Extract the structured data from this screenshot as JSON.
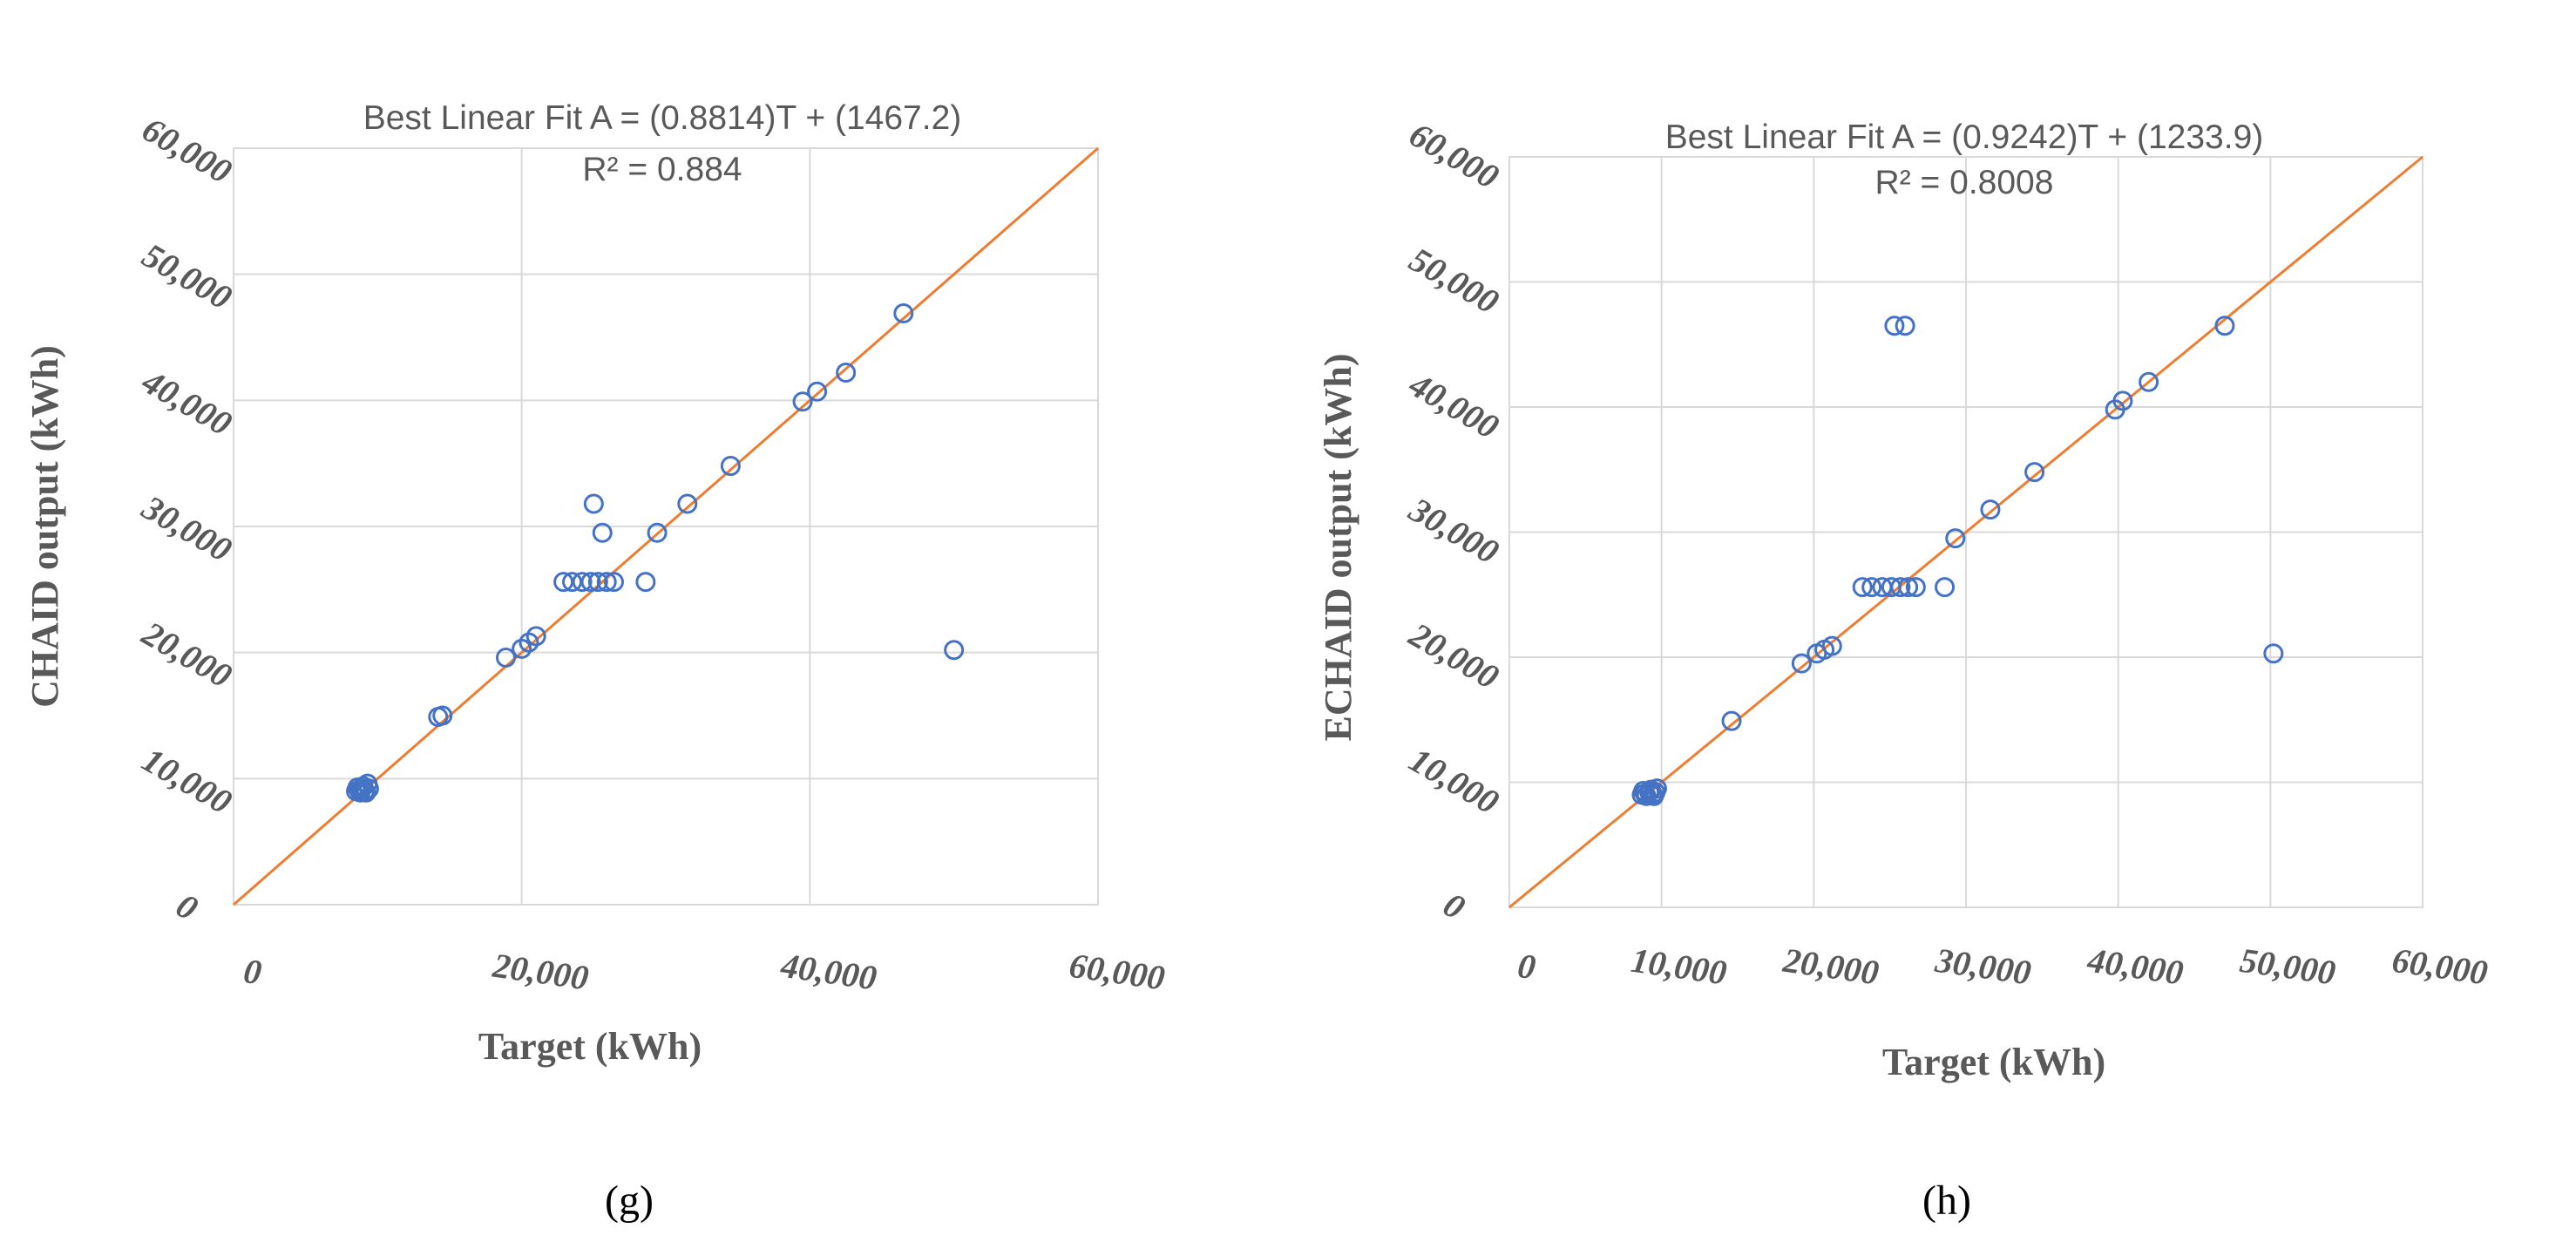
{
  "colors": {
    "markers": "#4472c4",
    "fit_line": "#ed7d31",
    "grid": "#d9d9d9",
    "text": "#595959"
  },
  "chart_data": [
    {
      "type": "scatter",
      "panel_label": "(g)",
      "title": "Best Linear Fit A = (0.8814)T + (1467.2)",
      "subtitle": "R² = 0.884",
      "xlabel": "Target (kWh)",
      "ylabel": "CHAID output (kWh)",
      "xlim": [
        0,
        60000
      ],
      "ylim": [
        0,
        60000
      ],
      "x_ticks": [
        "0",
        "20,000",
        "40,000",
        "60,000"
      ],
      "y_ticks": [
        "0",
        "10,000",
        "20,000",
        "30,000",
        "40,000",
        "50,000",
        "60,000"
      ],
      "grid": "vertical every 20,000, horizontal every 10,000",
      "series": [
        {
          "points": [
            [
              8500,
              9000
            ],
            [
              8700,
              9100
            ],
            [
              8800,
              8900
            ],
            [
              8900,
              9200
            ],
            [
              9000,
              9400
            ],
            [
              9100,
              9000
            ],
            [
              9200,
              8900
            ],
            [
              8600,
              9300
            ],
            [
              9300,
              9600
            ],
            [
              9400,
              9200
            ],
            [
              14200,
              14900
            ],
            [
              14500,
              15000
            ],
            [
              18900,
              19600
            ],
            [
              20000,
              20300
            ],
            [
              20500,
              20800
            ],
            [
              21000,
              21300
            ],
            [
              22900,
              25600
            ],
            [
              23500,
              25600
            ],
            [
              24200,
              25600
            ],
            [
              24800,
              25600
            ],
            [
              25300,
              25600
            ],
            [
              25900,
              25600
            ],
            [
              26400,
              25600
            ],
            [
              25000,
              31800
            ],
            [
              25600,
              29500
            ],
            [
              28600,
              25600
            ],
            [
              29400,
              29500
            ],
            [
              31500,
              31800
            ],
            [
              34500,
              34800
            ],
            [
              39500,
              39900
            ],
            [
              40500,
              40700
            ],
            [
              42500,
              42200
            ],
            [
              46500,
              46900
            ],
            [
              50000,
              20200
            ]
          ]
        }
      ],
      "fit_line": {
        "from": [
          0,
          0
        ],
        "to": [
          60000,
          60000
        ]
      }
    },
    {
      "type": "scatter",
      "panel_label": "(h)",
      "title": "Best Linear Fit A = (0.9242)T + (1233.9)",
      "subtitle": "R² = 0.8008",
      "xlabel": "Target (kWh)",
      "ylabel": "ECHAID output (kWh)",
      "xlim": [
        0,
        60000
      ],
      "ylim": [
        0,
        60000
      ],
      "x_ticks": [
        "0",
        "10,000",
        "20,000",
        "30,000",
        "40,000",
        "50,000",
        "60,000"
      ],
      "y_ticks": [
        "0",
        "10,000",
        "20,000",
        "30,000",
        "40,000",
        "50,000",
        "60,000"
      ],
      "grid": "vertical every 10,000, horizontal every 10,000",
      "series": [
        {
          "points": [
            [
              8700,
              9000
            ],
            [
              8900,
              9100
            ],
            [
              9000,
              8900
            ],
            [
              9200,
              9200
            ],
            [
              9300,
              9400
            ],
            [
              9400,
              9000
            ],
            [
              9500,
              8900
            ],
            [
              8800,
              9300
            ],
            [
              9700,
              9500
            ],
            [
              9600,
              9200
            ],
            [
              14600,
              14900
            ],
            [
              19200,
              19500
            ],
            [
              20200,
              20300
            ],
            [
              20700,
              20600
            ],
            [
              21200,
              20900
            ],
            [
              23200,
              25600
            ],
            [
              23800,
              25600
            ],
            [
              24500,
              25600
            ],
            [
              25100,
              25600
            ],
            [
              25700,
              25600
            ],
            [
              26200,
              25600
            ],
            [
              26700,
              25600
            ],
            [
              25300,
              46500
            ],
            [
              26000,
              46500
            ],
            [
              28600,
              25600
            ],
            [
              29300,
              29500
            ],
            [
              31600,
              31800
            ],
            [
              34500,
              34800
            ],
            [
              39800,
              39800
            ],
            [
              40300,
              40500
            ],
            [
              42000,
              42000
            ],
            [
              47000,
              46500
            ],
            [
              50200,
              20300
            ]
          ]
        }
      ],
      "fit_line": {
        "from": [
          0,
          0
        ],
        "to": [
          60000,
          60000
        ]
      }
    }
  ]
}
